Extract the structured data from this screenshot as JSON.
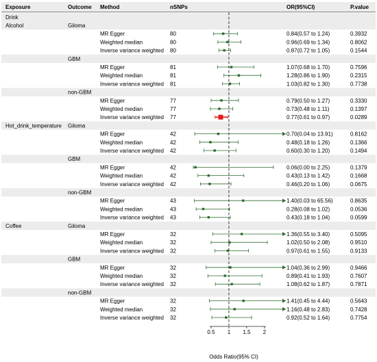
{
  "chart_data": {
    "type": "forest",
    "headers": {
      "exposure": "Exposure",
      "outcome": "Outcome",
      "method": "Method",
      "nsnps": "nSNPs",
      "or_ci": "OR(95%CI)",
      "pvalue": "P.value"
    },
    "section_label": "Drink",
    "xlabel": "Odds Ratio(95% CI)",
    "xticks": [
      0.5,
      1,
      1.5,
      2
    ],
    "xlim": [
      0,
      2.6
    ],
    "null_value": 1,
    "colors": {
      "point": "#2e6b2e",
      "highlight": "#e41a1c",
      "band": "#ececec"
    },
    "exposures": [
      {
        "name": "Alcohol",
        "outcomes": [
          {
            "name": "Giloma",
            "rows": [
              {
                "method": "MR Egger",
                "nsnps": "80",
                "or": 0.84,
                "lo": 0.57,
                "hi": 1.24,
                "or_text": "0.84(0.57 to 1.24)",
                "p": "0.3932"
              },
              {
                "method": "Weighted median",
                "nsnps": "80",
                "or": 0.96,
                "lo": 0.69,
                "hi": 1.34,
                "or_text": "0.96(0.69 to 1.34)",
                "p": "0.8062"
              },
              {
                "method": "Inverse variance weighted",
                "nsnps": "80",
                "or": 0.87,
                "lo": 0.72,
                "hi": 1.05,
                "or_text": "0.87(0.72 to 1.05)",
                "p": "0.1544"
              }
            ]
          },
          {
            "name": "GBM",
            "rows": [
              {
                "method": "MR Egger",
                "nsnps": "81",
                "or": 1.07,
                "lo": 0.68,
                "hi": 1.7,
                "or_text": "1.07(0.68 to 1.70)",
                "p": "0.7596"
              },
              {
                "method": "Weighted median",
                "nsnps": "81",
                "or": 1.28,
                "lo": 0.86,
                "hi": 1.9,
                "or_text": "1.28(0.86 to 1.90)",
                "p": "0.2315"
              },
              {
                "method": "Inverse variance weighted",
                "nsnps": "81",
                "or": 1.03,
                "lo": 0.82,
                "hi": 1.3,
                "or_text": "1.03(0.82 to 1.30)",
                "p": "0.7738"
              }
            ]
          },
          {
            "name": "non-GBM",
            "rows": [
              {
                "method": "MR Egger",
                "nsnps": "77",
                "or": 0.79,
                "lo": 0.5,
                "hi": 1.27,
                "or_text": "0.79(0.50 to 1.27)",
                "p": "0.3330"
              },
              {
                "method": "Weighted median",
                "nsnps": "77",
                "or": 0.73,
                "lo": 0.48,
                "hi": 1.11,
                "or_text": "0.73(0.48 to 1.11)",
                "p": "0.1397"
              },
              {
                "method": "Inverse variance weighted",
                "nsnps": "77",
                "or": 0.77,
                "lo": 0.61,
                "hi": 0.97,
                "or_text": "0.77(0.61 to 0.97)",
                "p": "0.0289",
                "highlight": true
              }
            ]
          }
        ]
      },
      {
        "name": "Hot_drink_temperature",
        "outcomes": [
          {
            "name": "Giloma",
            "rows": [
              {
                "method": "MR Egger",
                "nsnps": "42",
                "or": 0.7,
                "lo": 0.04,
                "hi": 13.91,
                "or_text": "0.70(0.04 to 13.91)",
                "p": "0.8162"
              },
              {
                "method": "Weighted median",
                "nsnps": "42",
                "or": 0.48,
                "lo": 0.18,
                "hi": 1.26,
                "or_text": "0.48(0.18 to 1.26)",
                "p": "0.1366"
              },
              {
                "method": "Inverse variance weighted",
                "nsnps": "42",
                "or": 0.6,
                "lo": 0.3,
                "hi": 1.2,
                "or_text": "0.60(0.30 to 1.20)",
                "p": "0.1494"
              }
            ]
          },
          {
            "name": "GBM",
            "rows": [
              {
                "method": "MR Egger",
                "nsnps": "42",
                "or": 0.06,
                "lo": 0.0,
                "hi": 2.25,
                "or_text": "0.06(0.00 to 2.25)",
                "p": "0.1379"
              },
              {
                "method": "Weighted median",
                "nsnps": "42",
                "or": 0.43,
                "lo": 0.13,
                "hi": 1.42,
                "or_text": "0.43(0.13 to 1.42)",
                "p": "0.1668"
              },
              {
                "method": "Inverse variance weighted",
                "nsnps": "42",
                "or": 0.46,
                "lo": 0.2,
                "hi": 1.06,
                "or_text": "0.46(0.20 to 1.06)",
                "p": "0.0675"
              }
            ]
          },
          {
            "name": "non-GBM",
            "rows": [
              {
                "method": "MR Egger",
                "nsnps": "43",
                "or": 1.4,
                "lo": 0.03,
                "hi": 65.56,
                "or_text": "1.40(0.03 to 65.56)",
                "p": "0.8635"
              },
              {
                "method": "Weighted median",
                "nsnps": "43",
                "or": 0.28,
                "lo": 0.08,
                "hi": 1.02,
                "or_text": "0.28(0.08 to 1.02)",
                "p": "0.0536"
              },
              {
                "method": "Inverse variance weighted",
                "nsnps": "43",
                "or": 0.43,
                "lo": 0.18,
                "hi": 1.04,
                "or_text": "0.43(0.18 to 1.04)",
                "p": "0.0599"
              }
            ]
          }
        ]
      },
      {
        "name": "Coffee",
        "outcomes": [
          {
            "name": "Giloma",
            "rows": [
              {
                "method": "MR Egger",
                "nsnps": "32",
                "or": 1.36,
                "lo": 0.55,
                "hi": 3.4,
                "or_text": "1.36(0.55 to 3.40)",
                "p": "0.5095"
              },
              {
                "method": "Weighted median",
                "nsnps": "32",
                "or": 1.02,
                "lo": 0.5,
                "hi": 2.08,
                "or_text": "1.02(0.50 to 2.08)",
                "p": "0.9510"
              },
              {
                "method": "Inverse variance weighted",
                "nsnps": "32",
                "or": 0.97,
                "lo": 0.61,
                "hi": 1.55,
                "or_text": "0.97(0.61 to 1.55)",
                "p": "0.9133"
              }
            ]
          },
          {
            "name": "GBM",
            "rows": [
              {
                "method": "MR Egger",
                "nsnps": "32",
                "or": 1.04,
                "lo": 0.36,
                "hi": 2.99,
                "or_text": "1.04(0.36 to 2.99)",
                "p": "0.9466"
              },
              {
                "method": "Weighted median",
                "nsnps": "32",
                "or": 0.89,
                "lo": 0.41,
                "hi": 1.93,
                "or_text": "0.89(0.41 to 1.93)",
                "p": "0.7607"
              },
              {
                "method": "Inverse variance weighted",
                "nsnps": "32",
                "or": 1.08,
                "lo": 0.62,
                "hi": 1.87,
                "or_text": "1.08(0.62 to 1.87)",
                "p": "0.7871"
              }
            ]
          },
          {
            "name": "non-GBM",
            "rows": [
              {
                "method": "MR Egger",
                "nsnps": "32",
                "or": 1.41,
                "lo": 0.45,
                "hi": 4.44,
                "or_text": "1.41(0.45 to 4.44)",
                "p": "0.5643"
              },
              {
                "method": "Weighted median",
                "nsnps": "32",
                "or": 1.16,
                "lo": 0.48,
                "hi": 2.83,
                "or_text": "1.16(0.48 to 2.83)",
                "p": "0.7428"
              },
              {
                "method": "Inverse variance weighted",
                "nsnps": "32",
                "or": 0.92,
                "lo": 0.52,
                "hi": 1.64,
                "or_text": "0.92(0.52 to 1.64)",
                "p": "0.7754"
              }
            ]
          }
        ]
      }
    ]
  }
}
